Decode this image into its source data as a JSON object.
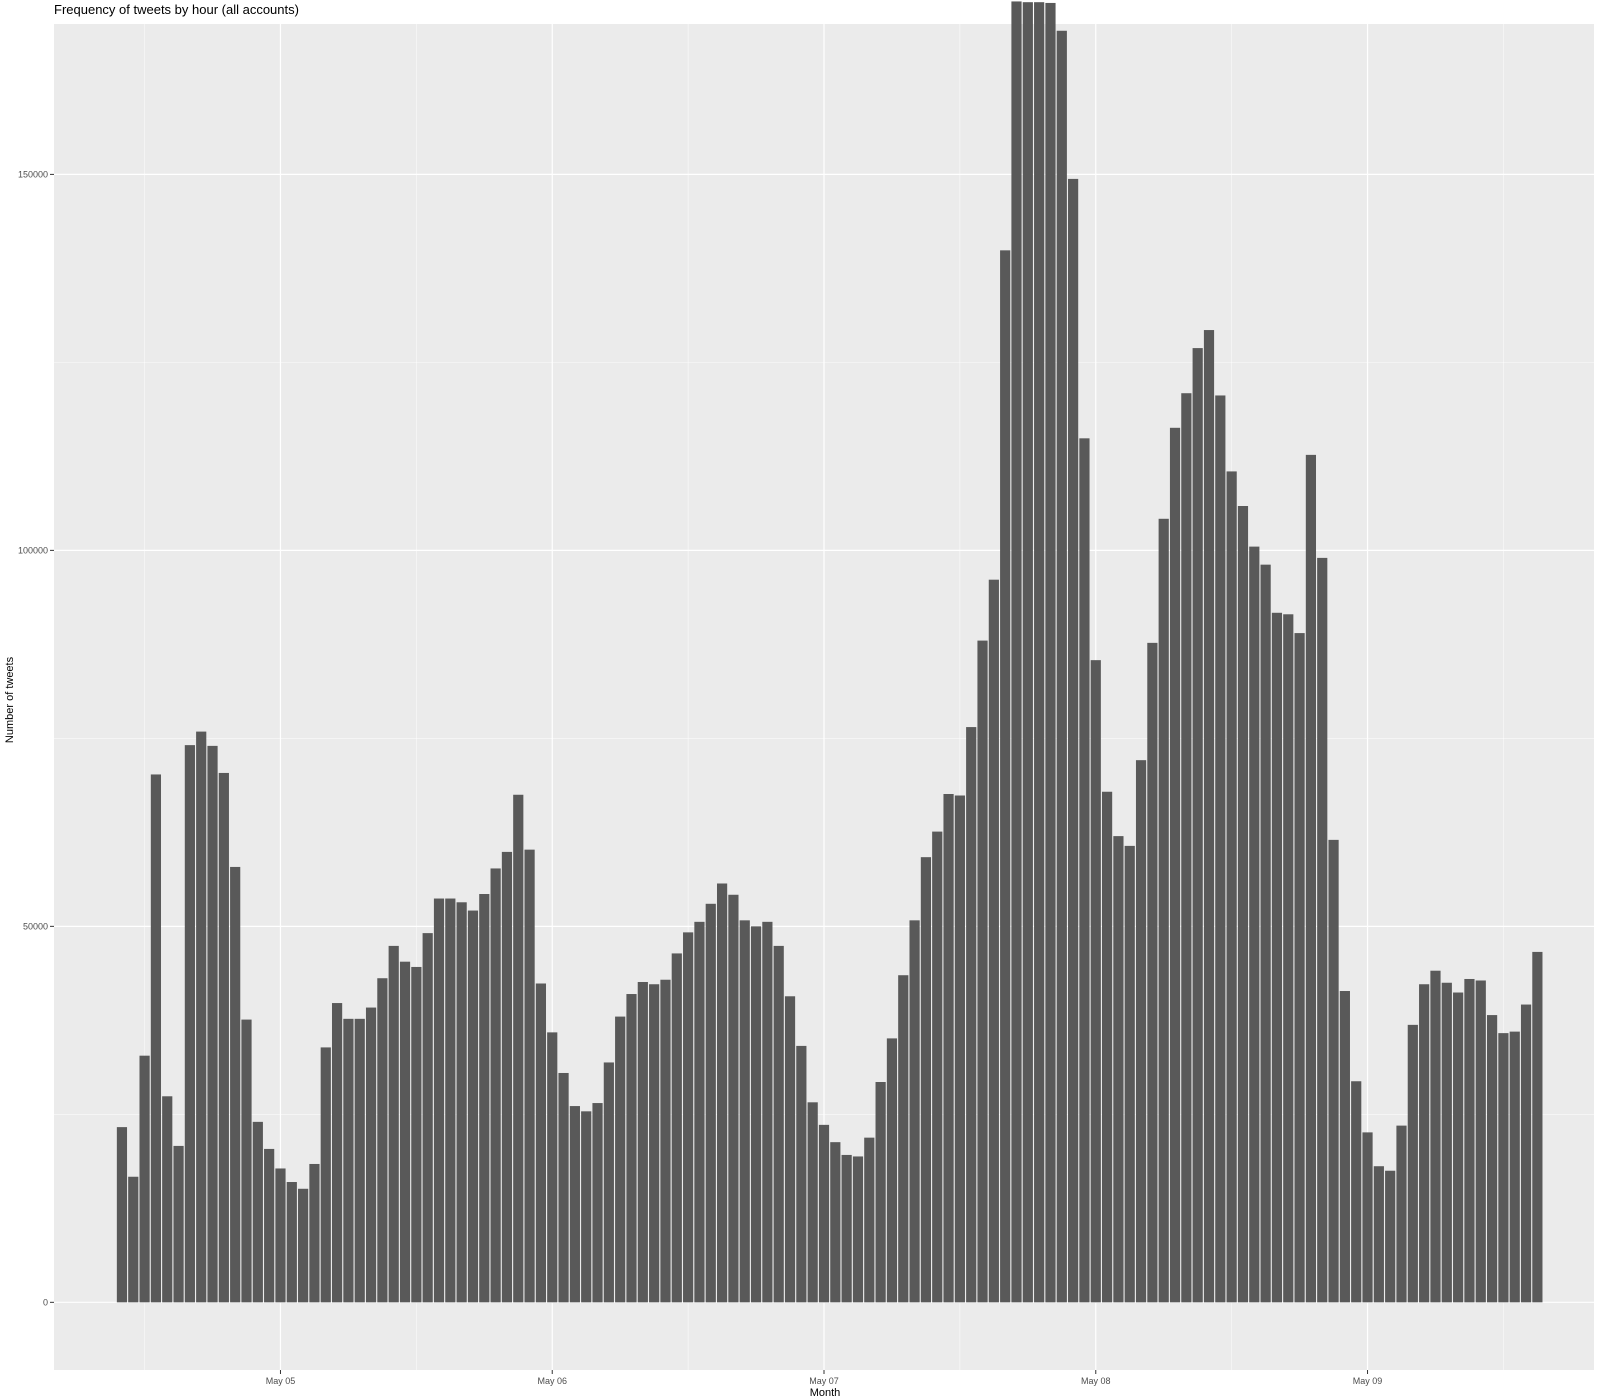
{
  "chart_data": {
    "type": "bar",
    "title": "Frequency of tweets by hour (all accounts)",
    "xlabel": "Month",
    "ylabel": "Number of tweets",
    "x_unit": "hour",
    "x_start": "2020-05-04T10:00",
    "x_ticks": [
      {
        "label": "May 05",
        "at": "2020-05-05T00:00"
      },
      {
        "label": "May 06",
        "at": "2020-05-06T00:00"
      },
      {
        "label": "May 07",
        "at": "2020-05-07T00:00"
      },
      {
        "label": "May 08",
        "at": "2020-05-08T00:00"
      },
      {
        "label": "May 09",
        "at": "2020-05-09T00:00"
      }
    ],
    "x_range": [
      "2020-05-04T04:00",
      "2020-05-09T20:00"
    ],
    "yticks": [
      0,
      50000,
      100000,
      150000
    ],
    "ylim": [
      -9000,
      170000
    ],
    "grid": true,
    "legend": "none",
    "bar_color": "#595959",
    "panel_color": "#ebebeb",
    "grid_color": "#ffffff",
    "values": [
      23300,
      16700,
      32800,
      70200,
      27400,
      20800,
      74100,
      75900,
      74000,
      70400,
      57900,
      37600,
      24000,
      20400,
      17800,
      16000,
      15100,
      18400,
      33900,
      39800,
      37700,
      37700,
      39200,
      43100,
      47400,
      45300,
      44600,
      49100,
      53700,
      53700,
      53200,
      52100,
      54300,
      57700,
      59900,
      67500,
      60200,
      42400,
      35900,
      30500,
      26100,
      25400,
      26500,
      31900,
      38000,
      41000,
      42600,
      42300,
      42900,
      46400,
      49200,
      50600,
      53000,
      55700,
      54200,
      50800,
      50000,
      50600,
      47400,
      40700,
      34100,
      26600,
      23600,
      21300,
      19600,
      19400,
      21900,
      29300,
      35100,
      43500,
      50800,
      59200,
      62600,
      67600,
      67400,
      76500,
      88000,
      96100,
      139900,
      173000,
      172900,
      172900,
      172800,
      169100,
      149400,
      114900,
      85400,
      67900,
      62000,
      60700,
      72100,
      87700,
      104200,
      116300,
      120900,
      126900,
      129300,
      120600,
      110500,
      105900,
      100500,
      98100,
      91700,
      91500,
      89000,
      112700,
      99000,
      61500,
      41400,
      29400,
      22600,
      18100,
      17500,
      23500,
      36900,
      42300,
      44100,
      42500,
      41200,
      43000,
      42800,
      38200,
      35800,
      36000,
      39600,
      46600
    ]
  }
}
